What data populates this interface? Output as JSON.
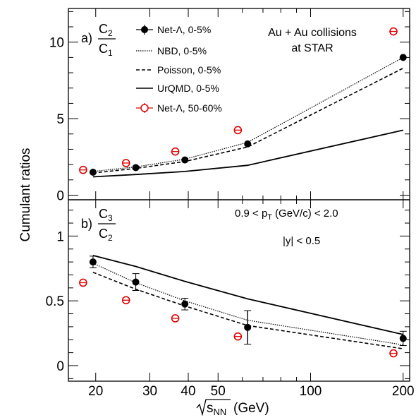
{
  "figure": {
    "ylabel": "Cumulant ratios",
    "xlabel_prefix": "s",
    "xlabel_sub": "NN",
    "xlabel_unit": "(GeV)",
    "xticks": [
      20,
      30,
      40,
      50,
      100,
      200
    ],
    "x_scale": "log",
    "xlim": [
      16.3,
      210
    ],
    "colors": {
      "star": "#000000",
      "peripheral": "#e00000"
    }
  },
  "chart_data": [
    {
      "type": "line",
      "panel": "a",
      "panel_label": "a)",
      "ratio_num": "C",
      "ratio_num_sub": "2",
      "ratio_den": "C",
      "ratio_den_sub": "1",
      "annotations": [
        "Au + Au collisions",
        "at STAR"
      ],
      "ylim": [
        -0.3,
        12.2
      ],
      "yticks": [
        0,
        5,
        10
      ],
      "legend_position": "top-left",
      "series": [
        {
          "name": "Net-Λ, 0-5%",
          "style": "marker-filled",
          "x": [
            19.6,
            27,
            39,
            62.4,
            200
          ],
          "y": [
            1.5,
            1.8,
            2.3,
            3.35,
            9.0
          ],
          "err": [
            0.08,
            0.08,
            0.08,
            0.1,
            0.22
          ]
        },
        {
          "name": "NBD, 0-5%",
          "style": "dotted",
          "x": [
            19.6,
            27,
            39,
            62.4,
            200
          ],
          "y": [
            1.55,
            1.85,
            2.35,
            3.45,
            9.0
          ]
        },
        {
          "name": "Poisson, 0-5%",
          "style": "dashed",
          "x": [
            19.6,
            27,
            39,
            62.4,
            200
          ],
          "y": [
            1.45,
            1.75,
            2.2,
            3.15,
            8.3
          ]
        },
        {
          "name": "UrQMD, 0-5%",
          "style": "solid",
          "x": [
            19.6,
            27,
            39,
            62.4,
            200
          ],
          "y": [
            1.2,
            1.35,
            1.55,
            1.95,
            4.25
          ]
        },
        {
          "name": "Net-Λ, 50-60%",
          "style": "marker-open-red",
          "x": [
            18.2,
            25.1,
            36.3,
            58.0,
            186
          ],
          "y": [
            1.65,
            2.1,
            2.85,
            4.25,
            10.7
          ]
        }
      ]
    },
    {
      "type": "line",
      "panel": "b",
      "panel_label": "b)",
      "ratio_num": "C",
      "ratio_num_sub": "3",
      "ratio_den": "C",
      "ratio_den_sub": "2",
      "annotations": [
        "0.9 < p",
        "T",
        "(GeV/c) < 2.0",
        "|y| < 0.5"
      ],
      "ylim": [
        -0.12,
        1.28
      ],
      "yticks": [
        0,
        0.5,
        1
      ],
      "series": [
        {
          "name": "Net-Λ, 0-5%",
          "style": "marker-filled",
          "x": [
            19.6,
            27,
            39,
            62.4,
            200
          ],
          "y": [
            0.8,
            0.645,
            0.475,
            0.295,
            0.21
          ],
          "err": [
            0.025,
            0.03,
            0.02,
            0.13,
            0.03
          ],
          "sys": [
            0.045,
            0.065,
            0.045,
            0.13,
            0.055
          ]
        },
        {
          "name": "NBD, 0-5%",
          "style": "dotted",
          "x": [
            19.6,
            27,
            39,
            62.4,
            200
          ],
          "y": [
            0.79,
            0.64,
            0.5,
            0.35,
            0.16
          ]
        },
        {
          "name": "Poisson, 0-5%",
          "style": "dashed",
          "x": [
            19.6,
            27,
            39,
            62.4,
            200
          ],
          "y": [
            0.72,
            0.59,
            0.46,
            0.31,
            0.13
          ]
        },
        {
          "name": "UrQMD, 0-5%",
          "style": "solid",
          "x": [
            19.6,
            27,
            39,
            62.4,
            200
          ],
          "y": [
            0.85,
            0.765,
            0.65,
            0.515,
            0.24
          ]
        },
        {
          "name": "Net-Λ, 50-60%",
          "style": "marker-open-red",
          "x": [
            18.2,
            25.1,
            36.3,
            58.0,
            186
          ],
          "y": [
            0.64,
            0.505,
            0.365,
            0.225,
            0.095
          ]
        }
      ]
    }
  ]
}
